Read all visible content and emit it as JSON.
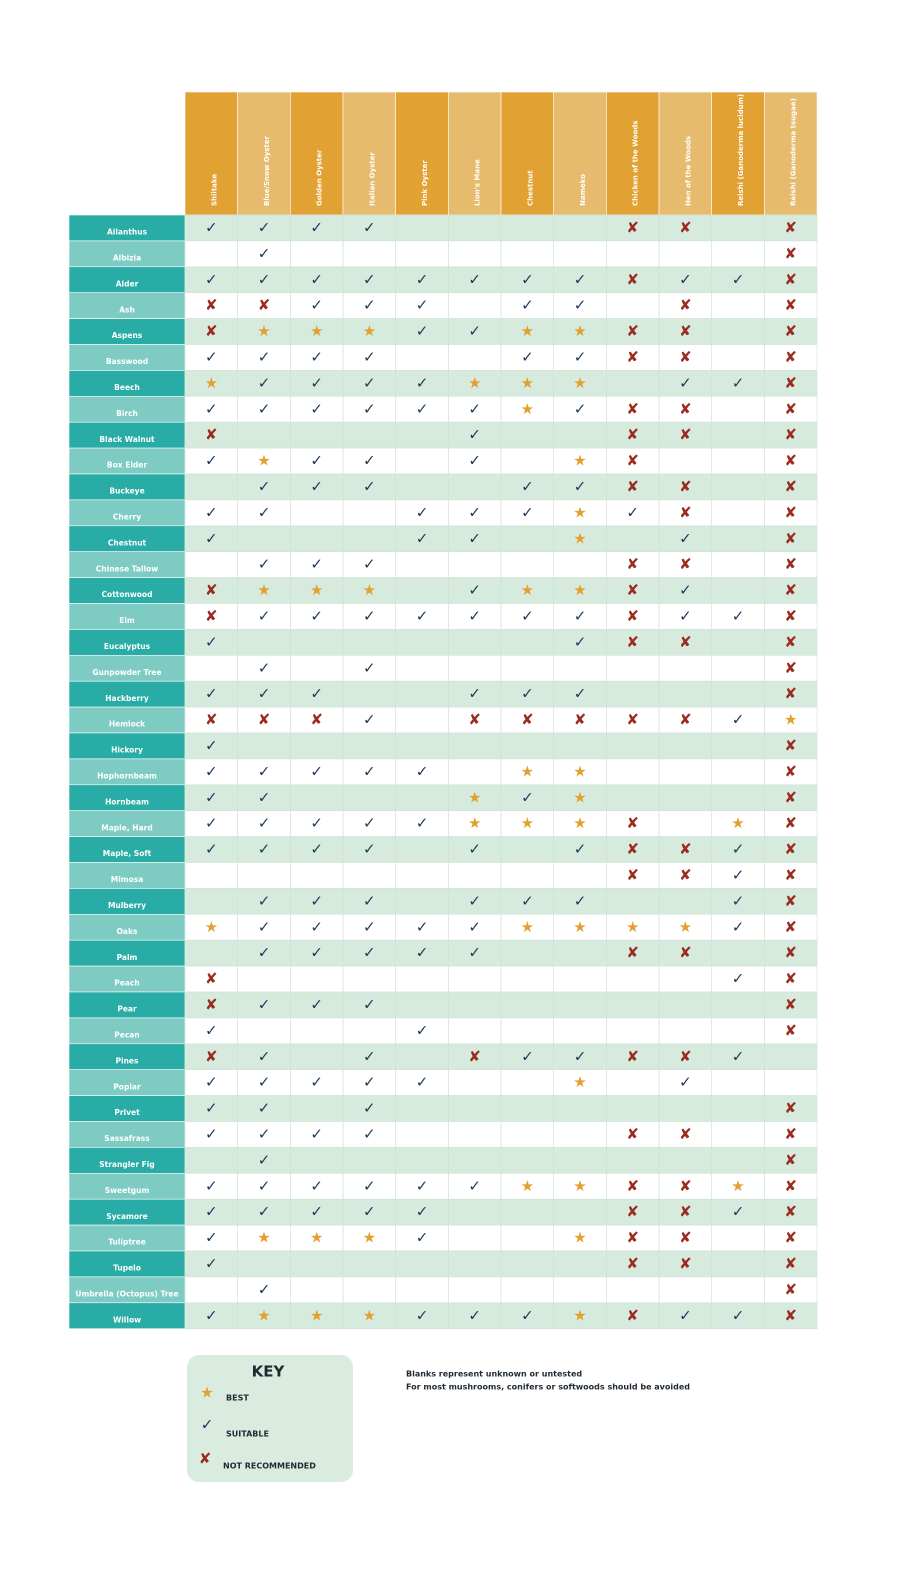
{
  "header": {
    "columns": [
      "Shiitake",
      "Blue/Snow Oyster",
      "Golden Oyster",
      "Italian Oyster",
      "Pink Oyster",
      "Lion's Mane",
      "Chestnut",
      "Nameko",
      "Chicken of the Woods",
      "Hen of the Woods",
      "Reishi (Ganoderma lucidum)",
      "Reishi (Ganoderma tsugae)"
    ]
  },
  "rows": [
    {
      "name": "Ailanthus",
      "cells": [
        "✓",
        "✓",
        "✓",
        "✓",
        null,
        null,
        null,
        null,
        "✘",
        "✘",
        null,
        "✘"
      ]
    },
    {
      "name": "Albizia",
      "cells": [
        null,
        "✓",
        null,
        null,
        null,
        null,
        null,
        null,
        null,
        null,
        null,
        "✘"
      ]
    },
    {
      "name": "Alder",
      "cells": [
        "✓",
        "✓",
        "✓",
        "✓",
        "✓",
        "✓",
        "✓",
        "✓",
        "✘",
        "✓",
        "✓",
        "✘"
      ]
    },
    {
      "name": "Ash",
      "cells": [
        "✘",
        "✘",
        "✓",
        "✓",
        "✓",
        null,
        "✓",
        "✓",
        null,
        "✘",
        null,
        "✘"
      ]
    },
    {
      "name": "Aspens",
      "cells": [
        "✘",
        "★",
        "★",
        "★",
        "✓",
        "✓",
        "★",
        "★",
        "✘",
        "✘",
        null,
        "✘"
      ]
    },
    {
      "name": "Basswood",
      "cells": [
        "✓",
        "✓",
        "✓",
        "✓",
        null,
        null,
        "✓",
        "✓",
        "✘",
        "✘",
        null,
        "✘"
      ]
    },
    {
      "name": "Beech",
      "cells": [
        "★",
        "✓",
        "✓",
        "✓",
        "✓",
        "★",
        "★",
        "★",
        null,
        "✓",
        "✓",
        "✘"
      ]
    },
    {
      "name": "Birch",
      "cells": [
        "✓",
        "✓",
        "✓",
        "✓",
        "✓",
        "✓",
        "★",
        "✓",
        "✘",
        "✘",
        null,
        "✘"
      ]
    },
    {
      "name": "Black Walnut",
      "cells": [
        "✘",
        null,
        null,
        null,
        null,
        "✓",
        null,
        null,
        "✘",
        "✘",
        null,
        "✘"
      ]
    },
    {
      "name": "Box Elder",
      "cells": [
        "✓",
        "★",
        "✓",
        "✓",
        null,
        "✓",
        null,
        "★",
        "✘",
        null,
        null,
        "✘"
      ]
    },
    {
      "name": "Buckeye",
      "cells": [
        null,
        "✓",
        "✓",
        "✓",
        null,
        null,
        "✓",
        "✓",
        "✘",
        "✘",
        null,
        "✘"
      ]
    },
    {
      "name": "Cherry",
      "cells": [
        "✓",
        "✓",
        null,
        null,
        "✓",
        "✓",
        "✓",
        "★",
        "✓",
        "✘",
        null,
        "✘"
      ]
    },
    {
      "name": "Chestnut",
      "cells": [
        "✓",
        null,
        null,
        null,
        "✓",
        "✓",
        null,
        "★",
        null,
        "✓",
        null,
        "✘"
      ]
    },
    {
      "name": "Chinese Tallow",
      "cells": [
        null,
        "✓",
        "✓",
        "✓",
        null,
        null,
        null,
        null,
        "✘",
        "✘",
        null,
        "✘"
      ]
    },
    {
      "name": "Cottonwood",
      "cells": [
        "✘",
        "★",
        "★",
        "★",
        null,
        "✓",
        "★",
        "★",
        "✘",
        "✓",
        null,
        "✘"
      ]
    },
    {
      "name": "Elm",
      "cells": [
        "✘",
        "✓",
        "✓",
        "✓",
        "✓",
        "✓",
        "✓",
        "✓",
        "✘",
        "✓",
        "✓",
        "✘"
      ]
    },
    {
      "name": "Eucalyptus",
      "cells": [
        "✓",
        null,
        null,
        null,
        null,
        null,
        null,
        "✓",
        "✘",
        "✘",
        null,
        "✘"
      ]
    },
    {
      "name": "Gunpowder Tree",
      "cells": [
        null,
        "✓",
        null,
        "✓",
        null,
        null,
        null,
        null,
        null,
        null,
        null,
        "✘"
      ]
    },
    {
      "name": "Hackberry",
      "cells": [
        "✓",
        "✓",
        "✓",
        null,
        null,
        "✓",
        "✓",
        "✓",
        null,
        null,
        null,
        "✘"
      ]
    },
    {
      "name": "Hemlock",
      "cells": [
        "✘",
        "✘",
        "✘",
        "✓",
        null,
        "✘",
        "✘",
        "✘",
        "✘",
        "✘",
        "✓",
        "★"
      ]
    },
    {
      "name": "Hickory",
      "cells": [
        "✓",
        null,
        null,
        null,
        null,
        null,
        null,
        null,
        null,
        null,
        null,
        "✘"
      ]
    },
    {
      "name": "Hophornbeam",
      "cells": [
        "✓",
        "✓",
        "✓",
        "✓",
        "✓",
        null,
        "★",
        "★",
        null,
        null,
        null,
        "✘"
      ]
    },
    {
      "name": "Hornbeam",
      "cells": [
        "✓",
        "✓",
        null,
        null,
        null,
        "★",
        "✓",
        "★",
        null,
        null,
        null,
        "✘"
      ]
    },
    {
      "name": "Maple, Hard",
      "cells": [
        "✓",
        "✓",
        "✓",
        "✓",
        "✓",
        "★",
        "★",
        "★",
        "✘",
        null,
        "★",
        "✘"
      ]
    },
    {
      "name": "Maple, Soft",
      "cells": [
        "✓",
        "✓",
        "✓",
        "✓",
        null,
        "✓",
        null,
        "✓",
        "✘",
        "✘",
        "✓",
        "✘"
      ]
    },
    {
      "name": "Mimosa",
      "cells": [
        null,
        null,
        null,
        null,
        null,
        null,
        null,
        null,
        "✘",
        "✘",
        "✓",
        "✘"
      ]
    },
    {
      "name": "Mulberry",
      "cells": [
        null,
        "✓",
        "✓",
        "✓",
        null,
        "✓",
        "✓",
        "✓",
        null,
        null,
        "✓",
        "✘"
      ]
    },
    {
      "name": "Oaks",
      "cells": [
        "★",
        "✓",
        "✓",
        "✓",
        "✓",
        "✓",
        "★",
        "★",
        "★",
        "★",
        "✓",
        "✘"
      ]
    },
    {
      "name": "Palm",
      "cells": [
        null,
        "✓",
        "✓",
        "✓",
        "✓",
        "✓",
        null,
        null,
        "✘",
        "✘",
        null,
        "✘"
      ]
    },
    {
      "name": "Peach",
      "cells": [
        "✘",
        null,
        null,
        null,
        null,
        null,
        null,
        null,
        null,
        null,
        "✓",
        "✘"
      ]
    },
    {
      "name": "Pear",
      "cells": [
        "✘",
        "✓",
        "✓",
        "✓",
        null,
        null,
        null,
        null,
        null,
        null,
        null,
        "✘"
      ]
    },
    {
      "name": "Pecan",
      "cells": [
        "✓",
        null,
        null,
        null,
        "✓",
        null,
        null,
        null,
        null,
        null,
        null,
        "✘"
      ]
    },
    {
      "name": "Pines",
      "cells": [
        "✘",
        "✓",
        null,
        "✓",
        null,
        "✘",
        "✓",
        "✓",
        "✘",
        "✘",
        "✓",
        null
      ]
    },
    {
      "name": "Poplar",
      "cells": [
        "✓",
        "✓",
        "✓",
        "✓",
        "✓",
        null,
        null,
        "★",
        null,
        "✓",
        null,
        null
      ]
    },
    {
      "name": "Privet",
      "cells": [
        "✓",
        "✓",
        null,
        "✓",
        null,
        null,
        null,
        null,
        null,
        null,
        null,
        "✘"
      ]
    },
    {
      "name": "Sassafrass",
      "cells": [
        "✓",
        "✓",
        "✓",
        "✓",
        null,
        null,
        null,
        null,
        "✘",
        "✘",
        null,
        "✘"
      ]
    },
    {
      "name": "Strangler Fig",
      "cells": [
        null,
        "✓",
        null,
        null,
        null,
        null,
        null,
        null,
        null,
        null,
        null,
        "✘"
      ]
    },
    {
      "name": "Sweetgum",
      "cells": [
        "✓",
        "✓",
        "✓",
        "✓",
        "✓",
        "✓",
        "★",
        "★",
        "✘",
        "✘",
        "★",
        "✘"
      ]
    },
    {
      "name": "Sycamore",
      "cells": [
        "✓",
        "✓",
        "✓",
        "✓",
        "✓",
        null,
        null,
        null,
        "✘",
        "✘",
        "✓",
        "✘"
      ]
    },
    {
      "name": "Tuliptree",
      "cells": [
        "✓",
        "★",
        "★",
        "★",
        "✓",
        null,
        null,
        "★",
        "✘",
        "✘",
        null,
        "✘"
      ]
    },
    {
      "name": "Tupelo",
      "cells": [
        "✓",
        null,
        null,
        null,
        null,
        null,
        null,
        null,
        "✘",
        "✘",
        null,
        "✘"
      ]
    },
    {
      "name": "Umbrella (Octopus) Tree",
      "cells": [
        null,
        "✓",
        null,
        null,
        null,
        null,
        null,
        null,
        null,
        null,
        null,
        "✘"
      ]
    },
    {
      "name": "Willow",
      "cells": [
        "✓",
        "★",
        "★",
        "★",
        "✓",
        "✓",
        "✓",
        "★",
        "✘",
        "✓",
        "✓",
        "✘"
      ]
    }
  ],
  "key": {
    "title": "KEY",
    "items": [
      {
        "symbol": "★",
        "label": "BEST"
      },
      {
        "symbol": "✓",
        "label": "SUITABLE"
      },
      {
        "symbol": "✘",
        "label": "NOT RECOMMENDED"
      }
    ]
  },
  "notes": [
    "Blanks represent unknown or untested",
    "For most mushrooms, conifers or softwoods should be avoided"
  ]
}
